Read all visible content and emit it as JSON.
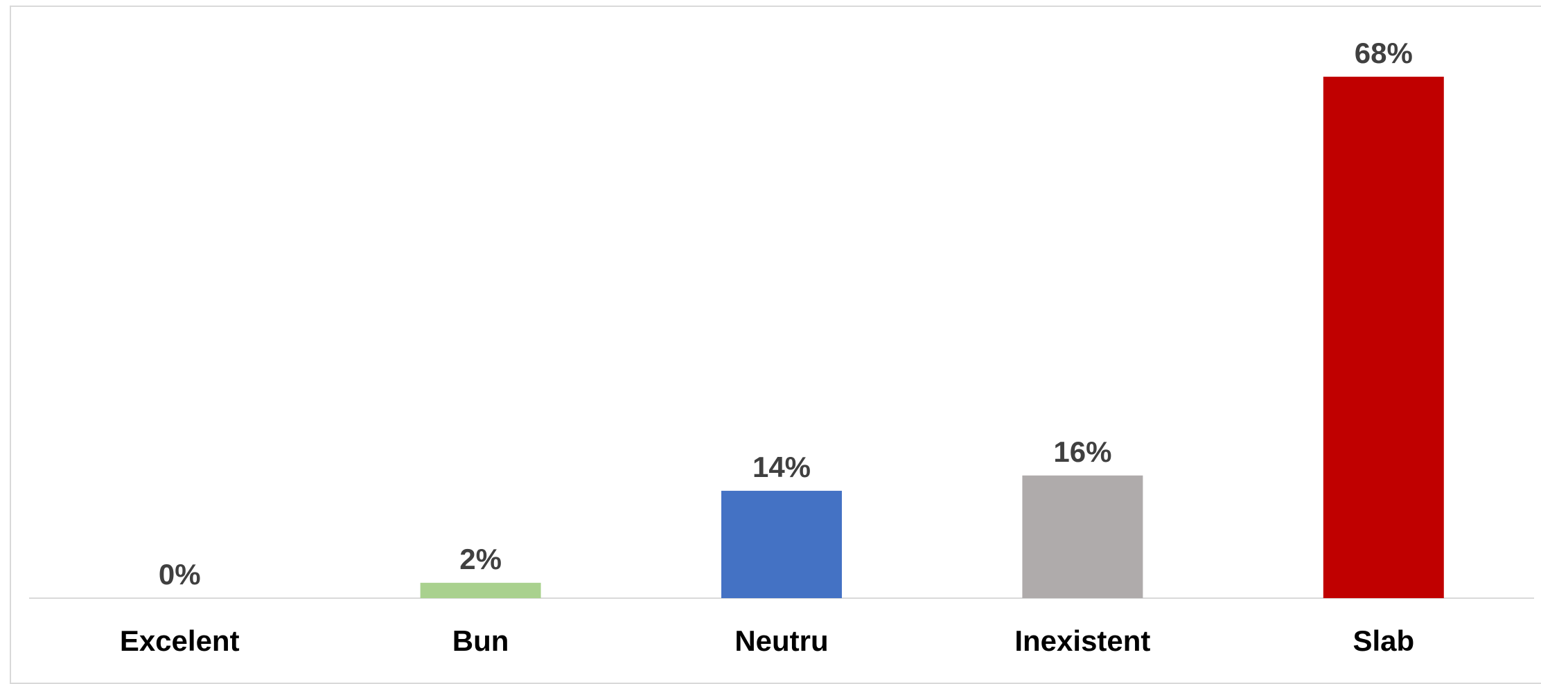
{
  "chart_data": {
    "type": "bar",
    "categories": [
      "Excelent",
      "Bun",
      "Neutru",
      "Inexistent",
      "Slab"
    ],
    "values": [
      0,
      2,
      14,
      16,
      68
    ],
    "value_labels": [
      "0%",
      "2%",
      "14%",
      "16%",
      "68%"
    ],
    "colors": [
      "#A9D18E",
      "#A9D18E",
      "#4472C4",
      "#AFABAB",
      "#C00000"
    ],
    "title": "",
    "xlabel": "",
    "ylabel": "",
    "ylim": [
      0,
      78
    ],
    "grid": false,
    "legend": "none"
  }
}
